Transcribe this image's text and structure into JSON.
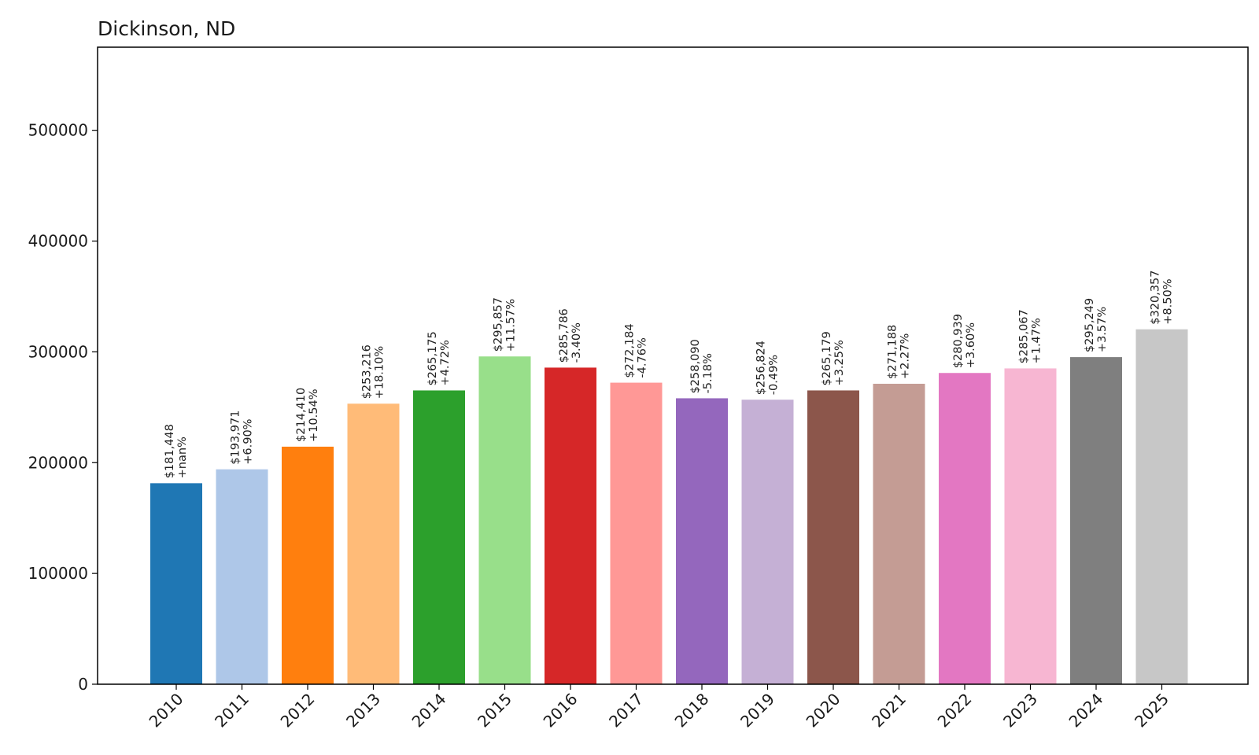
{
  "chart_data": {
    "type": "bar",
    "title": "Dickinson, ND",
    "xlabel": "",
    "ylabel": "",
    "ylim": [
      0,
      575000
    ],
    "yticks": [
      0,
      100000,
      200000,
      300000,
      400000,
      500000
    ],
    "ytick_labels": [
      "0",
      "100000",
      "200000",
      "300000",
      "400000",
      "500000"
    ],
    "categories": [
      "2010",
      "2011",
      "2012",
      "2013",
      "2014",
      "2015",
      "2016",
      "2017",
      "2018",
      "2019",
      "2020",
      "2021",
      "2022",
      "2023",
      "2024",
      "2025"
    ],
    "values": [
      181448,
      193971,
      214410,
      253216,
      265175,
      295857,
      285786,
      272184,
      258090,
      256824,
      265179,
      271188,
      280939,
      285067,
      295249,
      320357
    ],
    "price_labels": [
      "$181,448",
      "$193,971",
      "$214,410",
      "$253,216",
      "$265,175",
      "$295,857",
      "$285,786",
      "$272,184",
      "$258,090",
      "$256,824",
      "$265,179",
      "$271,188",
      "$280,939",
      "$285,067",
      "$295,249",
      "$320,357"
    ],
    "change_labels": [
      "+nan%",
      "+6.90%",
      "+10.54%",
      "+18.10%",
      "+4.72%",
      "+11.57%",
      "-3.40%",
      "-4.76%",
      "-5.18%",
      "-0.49%",
      "+3.25%",
      "+2.27%",
      "+3.60%",
      "+1.47%",
      "+3.57%",
      "+8.50%"
    ],
    "colors": [
      "#1f77b4",
      "#aec7e8",
      "#ff7f0e",
      "#ffbb78",
      "#2ca02c",
      "#98df8a",
      "#d62728",
      "#ff9896",
      "#9467bd",
      "#c5b0d5",
      "#8c564b",
      "#c49c94",
      "#e377c2",
      "#f7b6d2",
      "#7f7f7f",
      "#c7c7c7"
    ],
    "grid": false,
    "legend": "none"
  }
}
